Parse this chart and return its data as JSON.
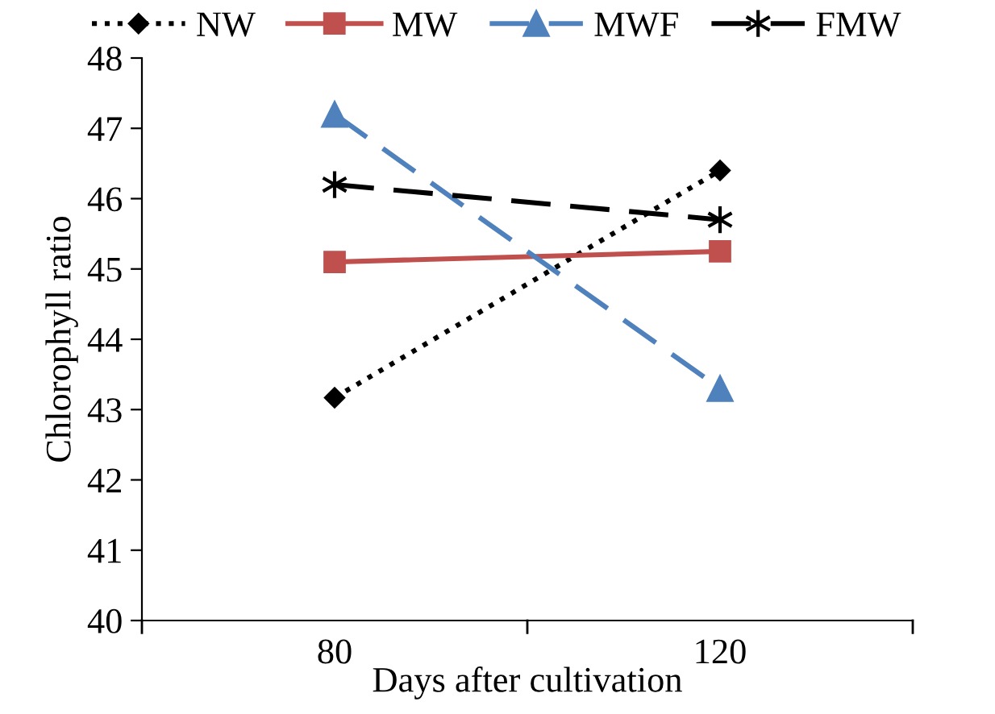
{
  "chart_data": {
    "type": "line",
    "xlabel": "Days after cultivation",
    "ylabel": "Chlorophyll ratio",
    "categories": [
      "80",
      "120"
    ],
    "series": [
      {
        "name": "NW",
        "color": "#000000",
        "values": [
          43.17,
          46.4
        ],
        "marker": "diamond",
        "line_style": "dotted"
      },
      {
        "name": "MW",
        "color": "#c0504d",
        "values": [
          45.1,
          45.25
        ],
        "marker": "square",
        "line_style": "solid"
      },
      {
        "name": "MWF",
        "color": "#4f81bd",
        "values": [
          47.2,
          43.3
        ],
        "marker": "triangle",
        "line_style": "dashed"
      },
      {
        "name": "FMW",
        "color": "#000000",
        "values": [
          46.2,
          45.7
        ],
        "marker": "cross",
        "line_style": "dashed"
      }
    ],
    "ylim": [
      40,
      48
    ],
    "yticks": [
      40,
      41,
      42,
      43,
      44,
      45,
      46,
      47,
      48
    ],
    "grid": false,
    "legend": "top"
  }
}
